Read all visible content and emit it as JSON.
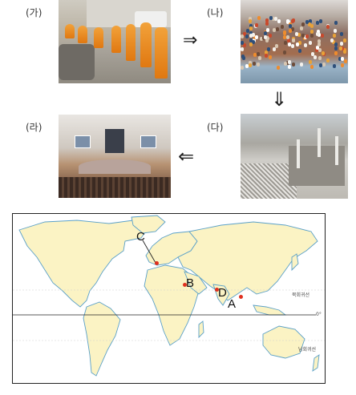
{
  "labels": {
    "ga": "(가)",
    "na": "(나)",
    "da": "(다)",
    "ra": "(라)"
  },
  "arrows": {
    "right": "⇒",
    "down": "⇓",
    "left": "⇐"
  },
  "map": {
    "markers": {
      "a": "A",
      "b": "B",
      "c": "C",
      "d": "D"
    },
    "tropic_north": "북회귀선",
    "equator": "0°",
    "tropic_south": "남회귀선"
  },
  "colors": {
    "land": "#fbf3c4",
    "coast": "#5aa0c8",
    "marker": "#e0301e"
  }
}
